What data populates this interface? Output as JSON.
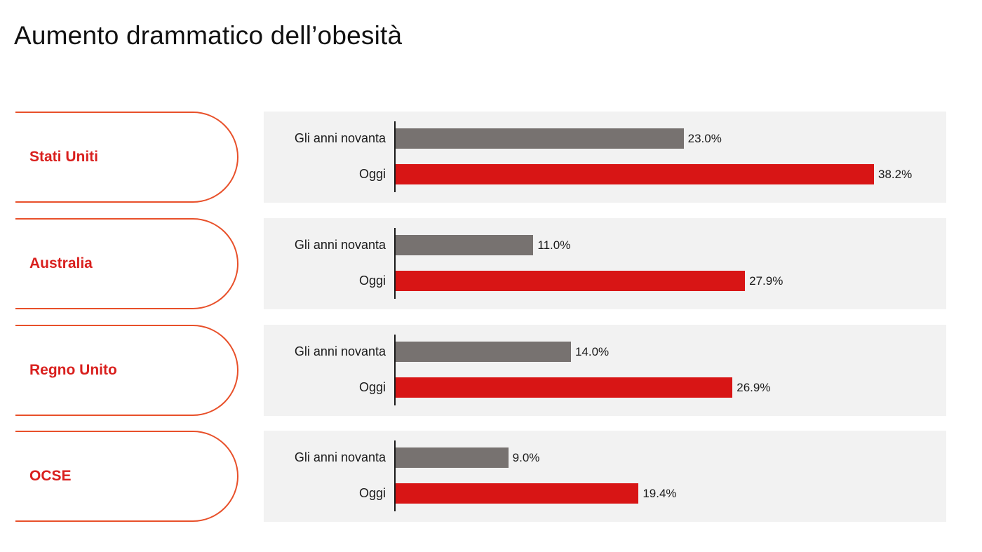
{
  "title": "Aumento drammatico dell’obesità",
  "colors": {
    "period1": "#777270",
    "period2": "#d81515",
    "accent": "#e8502a",
    "country_text": "#d9201e",
    "panel_bg": "#f2f2f2"
  },
  "chart_data": {
    "type": "bar",
    "orientation": "horizontal",
    "xlim": [
      0,
      40
    ],
    "unit": "%",
    "series_names": [
      "Gli anni novanta",
      "Oggi"
    ],
    "groups": [
      {
        "country": "Stati Uniti",
        "values": [
          23.0,
          38.2
        ],
        "labels": [
          "23.0%",
          "38.2%"
        ]
      },
      {
        "country": "Australia",
        "values": [
          11.0,
          27.9
        ],
        "labels": [
          "11.0%",
          "27.9%"
        ]
      },
      {
        "country": "Regno Unito",
        "values": [
          14.0,
          26.9
        ],
        "labels": [
          "14.0%",
          "26.9%"
        ]
      },
      {
        "country": "OCSE",
        "values": [
          9.0,
          19.4
        ],
        "labels": [
          "9.0%",
          "19.4%"
        ]
      }
    ]
  }
}
